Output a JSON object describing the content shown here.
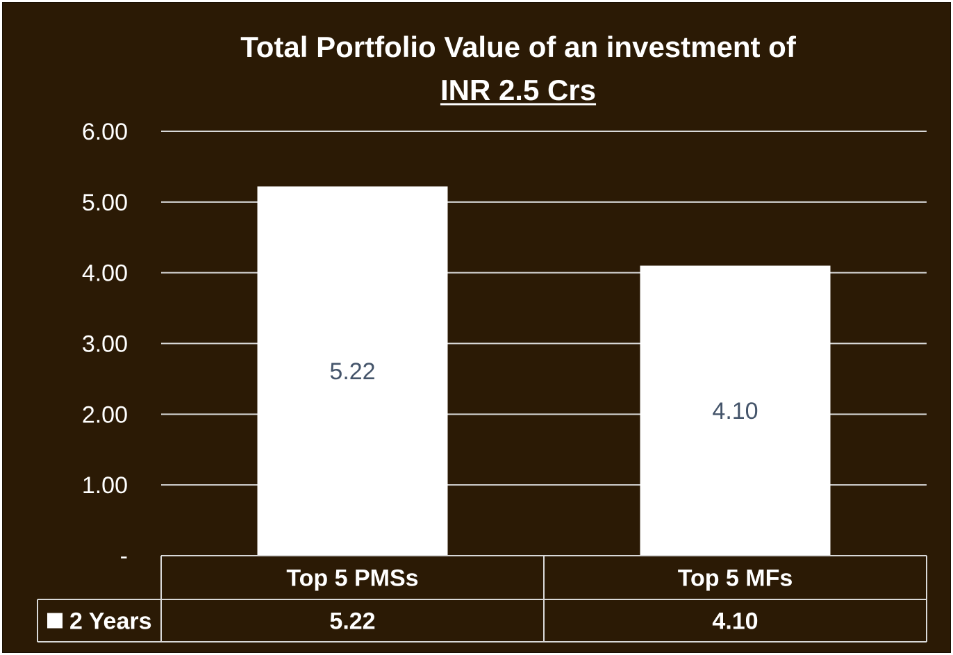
{
  "colors": {
    "background": "#2b1a05",
    "bar": "#ffffff",
    "gridline": "#d9d9d9",
    "data_label": "#44546a",
    "text": "#ffffff"
  },
  "chart_data": {
    "type": "bar",
    "title_line1": "Total Portfolio Value of an investment of",
    "title_line2": "INR 2.5 Crs",
    "categories": [
      "Top 5 PMSs",
      "Top 5 MFs"
    ],
    "series": [
      {
        "name": "2 Years",
        "values": [
          5.22,
          4.1
        ],
        "value_labels": [
          "5.22",
          "4.10"
        ]
      }
    ],
    "ylim": [
      0,
      6
    ],
    "y_ticks": [
      0,
      1,
      2,
      3,
      4,
      5,
      6
    ],
    "y_tick_labels": [
      "-",
      "1.00",
      "2.00",
      "3.00",
      "4.00",
      "5.00",
      "6.00"
    ],
    "grid": true,
    "legend": "data table below chart"
  }
}
